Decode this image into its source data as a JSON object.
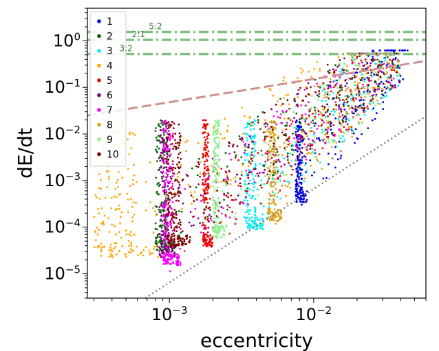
{
  "chart_data": {
    "type": "scatter",
    "title": "",
    "xlabel": "eccentricity",
    "ylabel": "dE/dt",
    "xscale": "log",
    "yscale": "log",
    "xlim": [
      0.00027,
      0.06
    ],
    "ylim": [
      3e-06,
      5.0
    ],
    "x_ticks": [
      {
        "value": 0.001,
        "base": "10",
        "exp": "−3"
      },
      {
        "value": 0.01,
        "base": "10",
        "exp": "−2"
      }
    ],
    "y_ticks": [
      {
        "value": 1,
        "base": "10",
        "exp": "0"
      },
      {
        "value": 0.1,
        "base": "10",
        "exp": "−1"
      },
      {
        "value": 0.01,
        "base": "10",
        "exp": "−2"
      },
      {
        "value": 0.001,
        "base": "10",
        "exp": "−3"
      },
      {
        "value": 0.0001,
        "base": "10",
        "exp": "−4"
      },
      {
        "value": 1e-05,
        "base": "10",
        "exp": "−5"
      }
    ],
    "legend_position": "top-left",
    "series": [
      {
        "name": "1",
        "color": "#0000dd",
        "e_low": 0.0075,
        "dedt_low": 0.00045,
        "e_steep": 0.009,
        "e_high": 0.045,
        "dedt_high": 0.35
      },
      {
        "name": "2",
        "color": "#006400",
        "e_low": 0.0008,
        "dedt_low": 4e-05,
        "e_steep": 0.0011,
        "e_high": 0.04,
        "dedt_high": 0.3
      },
      {
        "name": "3",
        "color": "#00eeee",
        "e_low": 0.0033,
        "dedt_low": 0.00012,
        "e_steep": 0.0045,
        "e_high": 0.04,
        "dedt_high": 0.3
      },
      {
        "name": "4",
        "color": "#ffa500",
        "e_low": 0.0003,
        "dedt_low": 3e-05,
        "e_steep": 0.0009,
        "e_high": 0.035,
        "dedt_high": 0.3
      },
      {
        "name": "5",
        "color": "#ee0000",
        "e_low": 0.0017,
        "dedt_low": 5e-05,
        "e_steep": 0.002,
        "e_high": 0.04,
        "dedt_high": 0.3
      },
      {
        "name": "6",
        "color": "#800080",
        "e_low": 0.00085,
        "dedt_low": 3e-05,
        "e_steep": 0.0011,
        "e_high": 0.04,
        "dedt_high": 0.3
      },
      {
        "name": "7",
        "color": "#ff00ff",
        "e_low": 0.0009,
        "dedt_low": 2e-05,
        "e_steep": 0.0012,
        "e_high": 0.04,
        "dedt_high": 0.3
      },
      {
        "name": "8",
        "color": "#daa520",
        "e_low": 0.0048,
        "dedt_low": 0.00018,
        "e_steep": 0.006,
        "e_high": 0.04,
        "dedt_high": 0.3
      },
      {
        "name": "9",
        "color": "#90ee90",
        "e_low": 0.002,
        "dedt_low": 8e-05,
        "e_steep": 0.0024,
        "e_high": 0.04,
        "dedt_high": 0.3
      },
      {
        "name": "10",
        "color": "#800000",
        "e_low": 0.00095,
        "dedt_low": 5e-05,
        "e_steep": 0.0014,
        "e_high": 0.04,
        "dedt_high": 0.3
      }
    ],
    "resonance_lines": [
      {
        "label": "5:2",
        "y": 1.55,
        "x_label": 0.00072
      },
      {
        "label": "2:1",
        "y": 1.05,
        "x_label": 0.00055
      },
      {
        "label": "3:2",
        "y": 0.52,
        "x_label": 0.00045
      }
    ],
    "reference_lines": [
      {
        "name": "upper-envelope",
        "style": "dashed",
        "color": "#d09090",
        "x": [
          0.00027,
          0.06
        ],
        "y": [
          0.025,
          0.37
        ]
      },
      {
        "name": "lower-envelope",
        "style": "dotted",
        "color": "#808080",
        "x": [
          0.00068,
          0.06
        ],
        "y": [
          3e-06,
          0.024
        ]
      }
    ]
  }
}
